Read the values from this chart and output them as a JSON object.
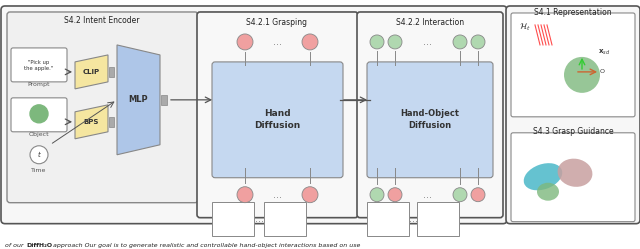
{
  "title_caption": "of our DiffH₂O approach Our goal is to generate realistic and controllable hand-object interactions based on use",
  "caption_bold": "DiffH₂O",
  "fig_bg": "#ffffff",
  "main_box_color": "#e8e8e8",
  "main_box_linecolor": "#555555",
  "intent_encoder_label": "S4.2 Intent Encoder",
  "grasping_label": "S4.2.1 Grasping",
  "interaction_label": "S4.2.2 Interaction",
  "s41_label": "S4.1 Representation",
  "s43_label": "S4.3 Grasp Guidance",
  "clip_color": "#f5e6a0",
  "bps_color": "#f5e6a0",
  "mlp_color": "#aec6e8",
  "hand_diff_color": "#c5d8f0",
  "hand_obj_diff_color": "#c5d8f0",
  "node_pink": "#f0a0a0",
  "node_green": "#b0d8b0",
  "connector_color": "#888888",
  "border_color": "#555555",
  "text_color": "#222222",
  "small_box_bg": "#ffffff",
  "small_box_border": "#888888",
  "right_panel_bg": "#ffffff",
  "right_panel_border": "#888888"
}
